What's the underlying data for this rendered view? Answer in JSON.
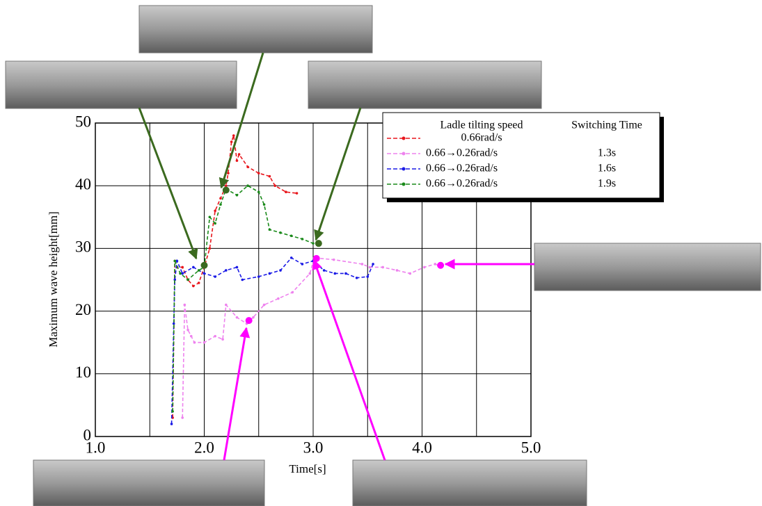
{
  "chart_data": {
    "type": "line",
    "xlabel": "Time[s]",
    "ylabel": "Maximum wave height[mm]",
    "xlim": [
      1,
      5
    ],
    "ylim": [
      0,
      50
    ],
    "xticks": [
      {
        "value": 1,
        "label": "1.0"
      },
      {
        "value": 2,
        "label": "2.0"
      },
      {
        "value": 3,
        "label": "3.0"
      },
      {
        "value": 4,
        "label": "4.0"
      },
      {
        "value": 5,
        "label": "5.0"
      }
    ],
    "xminorticks": [
      1.5,
      2.5,
      3.5,
      4.5
    ],
    "yticks": [
      0,
      10,
      20,
      30,
      40,
      50
    ],
    "grid": true,
    "legend_title": "Ladle tilting speed",
    "legend_title2": "Switching Time",
    "series": [
      {
        "name": "0.66rad/s",
        "color": "#e8151b",
        "x": [
          1.71,
          1.73,
          1.75,
          1.8,
          1.85,
          1.9,
          1.95,
          2.0,
          2.05,
          2.1,
          2.15,
          2.2,
          2.22,
          2.25,
          2.27,
          2.3,
          2.32,
          2.4,
          2.5,
          2.6,
          2.65,
          2.75,
          2.85
        ],
        "values": [
          3,
          28,
          27,
          27,
          25,
          24,
          24.5,
          27,
          30,
          36,
          38,
          40,
          42,
          47,
          48,
          44,
          45,
          43,
          42,
          41.5,
          40,
          39,
          38.8
        ]
      },
      {
        "name": "0.66→0.26rad/s",
        "switching_time": "1.3s",
        "color": "#ee82ee",
        "x": [
          1.8,
          1.82,
          1.85,
          1.88,
          1.91,
          2.0,
          2.1,
          2.17,
          2.2,
          2.3,
          2.39,
          2.45,
          2.55,
          2.68,
          2.81,
          2.97,
          3.01,
          3.19,
          3.45,
          3.52,
          3.64,
          3.77,
          3.89,
          4.02,
          4.12,
          4.15
        ],
        "values": [
          3,
          21,
          17,
          16,
          15,
          15,
          16,
          15.5,
          21,
          19,
          18,
          19,
          21,
          22,
          23,
          26,
          28.5,
          28.2,
          27.5,
          27,
          27,
          26.5,
          26,
          27,
          27.5,
          27.3
        ]
      },
      {
        "name": "0.66→0.26rad/s",
        "switching_time": "1.6s",
        "color": "#1a1ae6",
        "x": [
          1.7,
          1.72,
          1.73,
          1.75,
          1.8,
          1.9,
          2.0,
          2.1,
          2.2,
          2.3,
          2.35,
          2.5,
          2.6,
          2.7,
          2.8,
          2.9,
          3.0,
          3.1,
          3.2,
          3.3,
          3.4,
          3.5,
          3.55
        ],
        "values": [
          2,
          18,
          25,
          28,
          26,
          27,
          26,
          25.5,
          26.5,
          27,
          25,
          25.5,
          26,
          26.5,
          28.5,
          27.5,
          28,
          26.5,
          26,
          26,
          25.3,
          25.5,
          27.5
        ]
      },
      {
        "name": "0.66→0.26rad/s",
        "switching_time": "1.9s",
        "color": "#1a8a1a",
        "x": [
          1.71,
          1.73,
          1.78,
          1.85,
          1.95,
          2.0,
          2.05,
          2.1,
          2.15,
          2.2,
          2.3,
          2.4,
          2.5,
          2.55,
          2.6,
          2.7,
          2.8,
          2.9,
          3.0,
          3.05
        ],
        "values": [
          4,
          28,
          26,
          25,
          26.5,
          27,
          35,
          34,
          37,
          39.5,
          38.5,
          40,
          39,
          37,
          33,
          32.5,
          32,
          31.5,
          30.8,
          30.8
        ]
      }
    ],
    "highlight_points": [
      {
        "x": 2.0,
        "y": 27.3,
        "color": "#3b6a1f"
      },
      {
        "x": 2.2,
        "y": 39.3,
        "color": "#3b6a1f"
      },
      {
        "x": 3.05,
        "y": 30.8,
        "color": "#3b6a1f"
      },
      {
        "x": 2.41,
        "y": 18.5,
        "color": "#ff00ff"
      },
      {
        "x": 3.03,
        "y": 28.4,
        "color": "#ff00ff"
      },
      {
        "x": 4.17,
        "y": 27.3,
        "color": "#ff00ff"
      }
    ]
  }
}
